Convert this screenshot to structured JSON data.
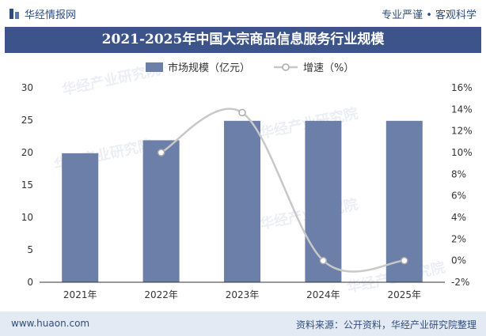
{
  "header": {
    "brand": "华经情报网",
    "tagline": "专业严谨 • 客观科学"
  },
  "title": "2021-2025年中国大宗商品信息服务行业规模",
  "footer": {
    "site": "www.huaon.com",
    "source": "资料来源：公开资料，华经产业研究院整理"
  },
  "watermark": "华经产业研究院",
  "colors": {
    "bar": "#6b7fa8",
    "line": "#c8c8c8",
    "marker_fill": "#ffffff",
    "marker_stroke": "#aaaaaa",
    "title_bg": "#3c5489"
  },
  "chart_data": {
    "type": "bar",
    "categories": [
      "2021年",
      "2022年",
      "2023年",
      "2024年",
      "2025年"
    ],
    "series": [
      {
        "name": "市场规模（亿元）",
        "type": "bar",
        "axis": "left",
        "values": [
          19.9,
          21.9,
          24.9,
          24.9,
          24.9
        ]
      },
      {
        "name": "增速（%）",
        "type": "line",
        "axis": "right",
        "values": [
          null,
          10.0,
          13.7,
          0.0,
          0.0
        ]
      }
    ],
    "y_left": {
      "min": 0,
      "max": 30,
      "ticks": [
        "0",
        "5",
        "10",
        "15",
        "20",
        "25",
        "30"
      ]
    },
    "y_right": {
      "min": -2,
      "max": 16,
      "ticks": [
        "-2%",
        "0%",
        "2%",
        "4%",
        "6%",
        "8%",
        "10%",
        "12%",
        "14%",
        "16%"
      ]
    },
    "legend_position": "top",
    "grid": false
  }
}
